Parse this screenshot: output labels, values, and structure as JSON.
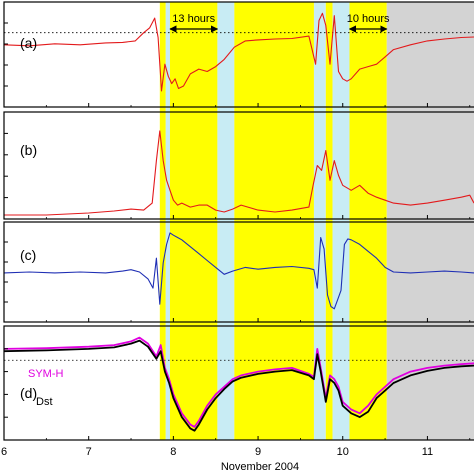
{
  "figure": {
    "xlabel": "November 2004",
    "x_ticks": [
      6,
      7,
      8,
      9,
      10,
      11
    ],
    "xlim": [
      6.0,
      11.55
    ],
    "highlight_bands": [
      {
        "start": 7.84,
        "end": 7.91,
        "color": "#ffff00"
      },
      {
        "start": 7.91,
        "end": 7.96,
        "color": "#c8ecf4"
      },
      {
        "start": 7.96,
        "end": 8.52,
        "color": "#ffff00"
      },
      {
        "start": 8.52,
        "end": 8.72,
        "color": "#c8ecf4"
      },
      {
        "start": 8.72,
        "end": 9.66,
        "color": "#ffff00"
      },
      {
        "start": 9.66,
        "end": 9.8,
        "color": "#c8ecf4"
      },
      {
        "start": 9.8,
        "end": 9.88,
        "color": "#ffff00"
      },
      {
        "start": 9.88,
        "end": 10.08,
        "color": "#c8ecf4"
      },
      {
        "start": 10.08,
        "end": 10.52,
        "color": "#ffff00"
      },
      {
        "start": 10.52,
        "end": 11.55,
        "color": "#d3d3d3"
      }
    ],
    "annotations": [
      {
        "label": "13 hours",
        "start": 7.96,
        "end": 8.52
      },
      {
        "label": "10 hours",
        "start": 10.08,
        "end": 10.52
      }
    ]
  },
  "chart_data": [
    {
      "panel": "(a)",
      "type": "line",
      "ylim": [
        -1,
        1
      ],
      "reference_line": 0.45,
      "series": [
        {
          "color": "#e31a1c",
          "x": [
            6.0,
            6.3,
            6.6,
            6.9,
            7.2,
            7.4,
            7.55,
            7.65,
            7.72,
            7.78,
            7.82,
            7.86,
            7.9,
            7.94,
            7.98,
            8.02,
            8.06,
            8.12,
            8.2,
            8.3,
            8.4,
            8.5,
            8.6,
            8.72,
            8.85,
            9.0,
            9.2,
            9.4,
            9.6,
            9.68,
            9.72,
            9.76,
            9.8,
            9.85,
            9.9,
            9.95,
            10.0,
            10.05,
            10.1,
            10.2,
            10.3,
            10.4,
            10.5,
            10.6,
            10.8,
            11.0,
            11.2,
            11.4,
            11.55
          ],
          "y": [
            0.2,
            0.18,
            0.22,
            0.2,
            0.24,
            0.25,
            0.28,
            0.45,
            0.55,
            0.75,
            0.35,
            -0.75,
            -0.2,
            -0.45,
            -0.6,
            -0.5,
            -0.7,
            -0.65,
            -0.4,
            -0.3,
            -0.35,
            -0.25,
            -0.1,
            0.15,
            0.28,
            0.3,
            0.32,
            0.33,
            0.38,
            -0.2,
            0.7,
            0.85,
            0.6,
            -0.2,
            0.8,
            -0.35,
            -0.5,
            -0.55,
            -0.5,
            -0.3,
            -0.25,
            -0.2,
            -0.05,
            0.1,
            0.2,
            0.28,
            0.32,
            0.35,
            0.36
          ]
        }
      ]
    },
    {
      "panel": "(b)",
      "type": "line",
      "ylim": [
        0,
        1
      ],
      "series": [
        {
          "color": "#e31a1c",
          "x": [
            6.0,
            6.5,
            7.0,
            7.3,
            7.5,
            7.65,
            7.75,
            7.8,
            7.84,
            7.88,
            7.92,
            7.96,
            8.0,
            8.05,
            8.1,
            8.2,
            8.3,
            8.4,
            8.5,
            8.6,
            8.7,
            8.8,
            9.0,
            9.2,
            9.4,
            9.6,
            9.65,
            9.7,
            9.75,
            9.8,
            9.85,
            9.9,
            9.95,
            10.0,
            10.1,
            10.2,
            10.3,
            10.4,
            10.5,
            10.6,
            10.8,
            11.0,
            11.2,
            11.4,
            11.5,
            11.55
          ],
          "y": [
            0.0,
            0.0,
            0.02,
            0.04,
            0.06,
            0.05,
            0.12,
            0.55,
            0.85,
            0.55,
            0.35,
            0.25,
            0.15,
            0.1,
            0.12,
            0.08,
            0.1,
            0.1,
            0.05,
            0.03,
            0.06,
            0.1,
            0.05,
            0.03,
            0.05,
            0.08,
            0.3,
            0.5,
            0.45,
            0.65,
            0.35,
            0.55,
            0.4,
            0.3,
            0.25,
            0.3,
            0.22,
            0.18,
            0.15,
            0.12,
            0.1,
            0.12,
            0.15,
            0.18,
            0.2,
            0.12
          ]
        }
      ]
    },
    {
      "panel": "(c)",
      "type": "line",
      "ylim": [
        -1,
        1
      ],
      "series": [
        {
          "color": "#1f2fb4",
          "x": [
            6.0,
            6.3,
            6.6,
            6.9,
            7.2,
            7.4,
            7.5,
            7.6,
            7.7,
            7.76,
            7.8,
            7.84,
            7.88,
            7.92,
            7.96,
            8.0,
            8.05,
            8.1,
            8.2,
            8.3,
            8.4,
            8.5,
            8.6,
            8.7,
            8.85,
            9.0,
            9.2,
            9.4,
            9.6,
            9.66,
            9.7,
            9.74,
            9.78,
            9.82,
            9.86,
            9.9,
            9.94,
            9.98,
            10.02,
            10.06,
            10.1,
            10.2,
            10.3,
            10.4,
            10.5,
            10.6,
            10.8,
            11.0,
            11.2,
            11.4,
            11.55
          ],
          "y": [
            -0.02,
            0.0,
            -0.02,
            0.0,
            -0.02,
            0.02,
            0.05,
            0.0,
            -0.15,
            -0.35,
            0.3,
            -0.7,
            0.2,
            0.6,
            0.85,
            0.8,
            0.75,
            0.7,
            0.55,
            0.4,
            0.25,
            0.1,
            -0.05,
            0.02,
            0.1,
            0.06,
            0.1,
            0.12,
            0.08,
            0.05,
            -0.35,
            0.75,
            0.5,
            -0.5,
            -0.75,
            -0.8,
            -0.6,
            -0.4,
            0.6,
            0.72,
            0.7,
            0.6,
            0.45,
            0.3,
            0.1,
            0.0,
            -0.02,
            0.0,
            0.02,
            0.0,
            -0.02
          ]
        }
      ]
    },
    {
      "panel": "(d)",
      "type": "line",
      "ylim": [
        -1,
        0.4
      ],
      "reference_line": 0.0,
      "legend": [
        "SYM-H",
        "Dst"
      ],
      "series": [
        {
          "name": "SYM-H",
          "color": "#e000e0",
          "x": [
            6.0,
            6.5,
            7.0,
            7.3,
            7.5,
            7.6,
            7.7,
            7.8,
            7.85,
            7.9,
            7.95,
            8.0,
            8.1,
            8.2,
            8.25,
            8.3,
            8.4,
            8.5,
            8.6,
            8.7,
            8.8,
            9.0,
            9.2,
            9.4,
            9.6,
            9.66,
            9.7,
            9.74,
            9.8,
            9.85,
            9.9,
            9.95,
            10.0,
            10.1,
            10.2,
            10.3,
            10.4,
            10.5,
            10.6,
            10.8,
            11.0,
            11.2,
            11.4,
            11.55
          ],
          "y": [
            0.15,
            0.16,
            0.18,
            0.2,
            0.25,
            0.3,
            0.22,
            0.05,
            0.2,
            -0.1,
            -0.25,
            -0.45,
            -0.7,
            -0.85,
            -0.88,
            -0.8,
            -0.6,
            -0.45,
            -0.35,
            -0.25,
            -0.2,
            -0.15,
            -0.12,
            -0.1,
            -0.18,
            -0.22,
            0.15,
            -0.1,
            -0.5,
            -0.2,
            -0.25,
            -0.35,
            -0.55,
            -0.65,
            -0.7,
            -0.6,
            -0.45,
            -0.35,
            -0.25,
            -0.15,
            -0.1,
            -0.07,
            -0.05,
            -0.04
          ]
        },
        {
          "name": "Dst",
          "color": "#000000",
          "x": [
            6.0,
            6.5,
            7.0,
            7.3,
            7.5,
            7.6,
            7.7,
            7.8,
            7.85,
            7.9,
            7.95,
            8.0,
            8.1,
            8.2,
            8.25,
            8.3,
            8.4,
            8.5,
            8.6,
            8.7,
            8.8,
            9.0,
            9.2,
            9.4,
            9.6,
            9.66,
            9.7,
            9.74,
            9.8,
            9.85,
            9.9,
            9.95,
            10.0,
            10.1,
            10.2,
            10.3,
            10.4,
            10.5,
            10.6,
            10.8,
            11.0,
            11.2,
            11.4,
            11.55
          ],
          "y": [
            0.12,
            0.13,
            0.15,
            0.17,
            0.22,
            0.26,
            0.18,
            0.02,
            0.12,
            -0.15,
            -0.3,
            -0.5,
            -0.75,
            -0.9,
            -0.93,
            -0.85,
            -0.65,
            -0.5,
            -0.38,
            -0.28,
            -0.23,
            -0.18,
            -0.15,
            -0.13,
            -0.2,
            -0.25,
            0.08,
            -0.15,
            -0.55,
            -0.25,
            -0.3,
            -0.4,
            -0.6,
            -0.7,
            -0.75,
            -0.68,
            -0.5,
            -0.4,
            -0.3,
            -0.2,
            -0.14,
            -0.1,
            -0.08,
            -0.07
          ]
        }
      ]
    }
  ]
}
